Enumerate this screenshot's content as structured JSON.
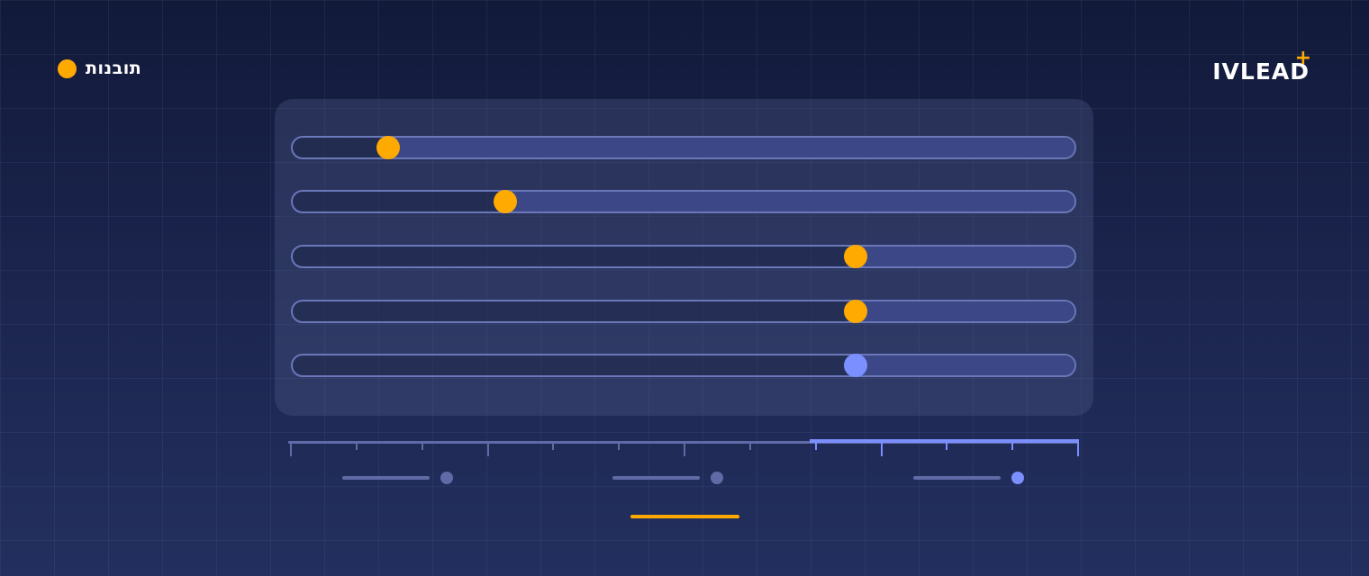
{
  "legend": {
    "label": "תובנות",
    "color": "#FFAA00"
  },
  "logo": {
    "text": "IVLEAD",
    "plus": "+",
    "plus_color": "#FFAA00"
  },
  "colors": {
    "accent": "#FFAA00",
    "selected": "#7B8FFF",
    "track_border": "#6A77B8",
    "track_fill": "#3B4786",
    "muted": "#5E6BA6"
  },
  "sliders": [
    {
      "value": 0.124,
      "thumb_color": "#FFAA00"
    },
    {
      "value": 0.273,
      "thumb_color": "#FFAA00"
    },
    {
      "value": 0.719,
      "thumb_color": "#FFAA00"
    },
    {
      "value": 0.719,
      "thumb_color": "#FFAA00"
    },
    {
      "value": 0.719,
      "thumb_color": "#7B8FFF"
    }
  ],
  "scale": {
    "ticks": 13,
    "major_every": 3,
    "active_from": 0.66,
    "active_to": 1.0
  },
  "controls": [
    {
      "state": "inactive"
    },
    {
      "state": "inactive"
    },
    {
      "state": "active"
    }
  ]
}
